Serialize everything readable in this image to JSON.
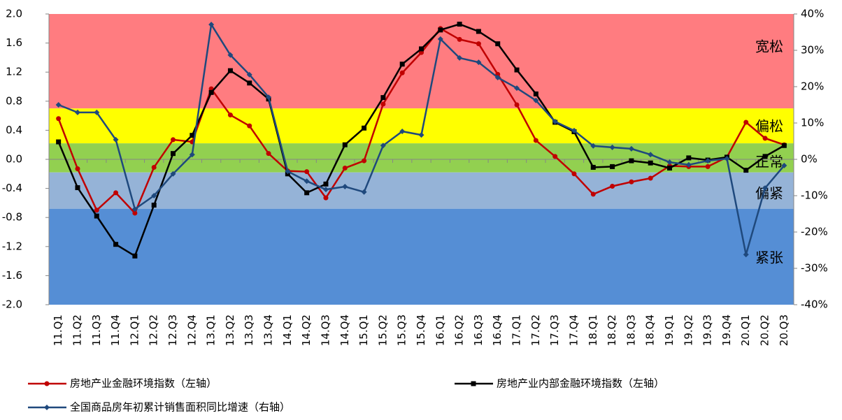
{
  "chart_data": {
    "type": "line",
    "categories": [
      "11.Q1",
      "11.Q2",
      "11.Q3",
      "11.Q4",
      "12.Q1",
      "12.Q2",
      "12.Q3",
      "12.Q4",
      "13.Q1",
      "13.Q2",
      "13.Q3",
      "13.Q4",
      "14.Q1",
      "14.Q2",
      "14.Q3",
      "14.Q4",
      "15.Q1",
      "15.Q2",
      "15.Q3",
      "15.Q4",
      "16.Q1",
      "16.Q2",
      "16.Q3",
      "16.Q4",
      "17.Q1",
      "17.Q2",
      "17.Q3",
      "17.Q4",
      "18.Q1",
      "18.Q2",
      "18.Q3",
      "18.Q4",
      "19.Q1",
      "19.Q2",
      "19.Q3",
      "19.Q4",
      "20.Q1",
      "20.Q2",
      "20.Q3"
    ],
    "series": [
      {
        "name": "房地产业金融环境指数（左轴）",
        "color": "#c00000",
        "marker": "circle",
        "values": [
          0.56,
          -0.13,
          -0.7,
          -0.46,
          -0.74,
          -0.11,
          0.27,
          0.24,
          0.97,
          0.61,
          0.46,
          0.08,
          -0.16,
          -0.17,
          -0.53,
          -0.12,
          -0.02,
          0.76,
          1.19,
          1.47,
          1.8,
          1.65,
          1.59,
          1.17,
          0.75,
          0.26,
          0.04,
          -0.2,
          -0.48,
          -0.37,
          -0.31,
          -0.26,
          -0.09,
          -0.1,
          -0.1,
          0.03,
          0.51,
          0.29,
          0.2
        ]
      },
      {
        "name": "房地产业内部金融环境指数（左轴）",
        "color": "#000000",
        "marker": "square",
        "values": [
          0.24,
          -0.39,
          -0.78,
          -1.17,
          -1.33,
          -0.63,
          0.08,
          0.33,
          0.92,
          1.22,
          1.05,
          0.83,
          -0.2,
          -0.46,
          -0.34,
          0.2,
          0.43,
          0.85,
          1.31,
          1.52,
          1.78,
          1.86,
          1.76,
          1.59,
          1.23,
          0.9,
          0.51,
          0.38,
          -0.11,
          -0.1,
          -0.02,
          -0.05,
          -0.12,
          0.02,
          -0.01,
          0.03,
          -0.15,
          0.04,
          0.19
        ]
      },
      {
        "name": "全国商品房年初累计销售面积同比增速（右轴）",
        "color": "#1f497d",
        "marker": "diamond",
        "axis": "y2",
        "values": [
          15.0,
          12.9,
          12.9,
          5.4,
          -13.7,
          -10.0,
          -4.0,
          1.3,
          37.1,
          28.7,
          23.3,
          17.1,
          -3.3,
          -6.0,
          -8.3,
          -7.5,
          -9.0,
          3.8,
          7.7,
          6.7,
          33.1,
          27.9,
          26.7,
          22.5,
          19.6,
          16.2,
          10.4,
          7.9,
          3.7,
          3.3,
          2.9,
          1.3,
          -0.8,
          -1.5,
          -0.4,
          0.2,
          -26.2,
          -7.9,
          -1.7
        ]
      }
    ],
    "ylim": [
      -2,
      2
    ],
    "yticks": [
      {
        "value": -2,
        "label": "-2.0"
      },
      -1.6,
      -1.2,
      -0.8,
      -0.4,
      {
        "value": 0,
        "label": "0.0"
      },
      0.4,
      0.8,
      1.2,
      1.6,
      {
        "value": 2,
        "label": "2.0"
      }
    ],
    "y2lim": [
      -40,
      40
    ],
    "y2ticks": [
      {
        "value": -40,
        "label": "-40%"
      },
      {
        "value": -30,
        "label": "-30%"
      },
      {
        "value": -20,
        "label": "-20%"
      },
      {
        "value": -10,
        "label": "-10%"
      },
      {
        "value": 0,
        "label": "0%"
      },
      {
        "value": 10,
        "label": "10%"
      },
      {
        "value": 20,
        "label": "20%"
      },
      {
        "value": 30,
        "label": "30%"
      },
      {
        "value": 40,
        "label": "40%"
      }
    ],
    "bands": [
      {
        "label": "宽松",
        "from": 0.7,
        "to": 2,
        "color": "#ff7c80"
      },
      {
        "label": "偏松",
        "from": 0.22,
        "to": 0.7,
        "color": "#ffff00"
      },
      {
        "label": "正常",
        "from": -0.18,
        "to": 0.22,
        "color": "#92d050"
      },
      {
        "label": "偏紧",
        "from": -0.68,
        "to": -0.18,
        "color": "#95b3d7"
      },
      {
        "label": "紧张",
        "from": -2,
        "to": -0.68,
        "color": "#558ed5"
      }
    ],
    "legend": "bottom"
  }
}
